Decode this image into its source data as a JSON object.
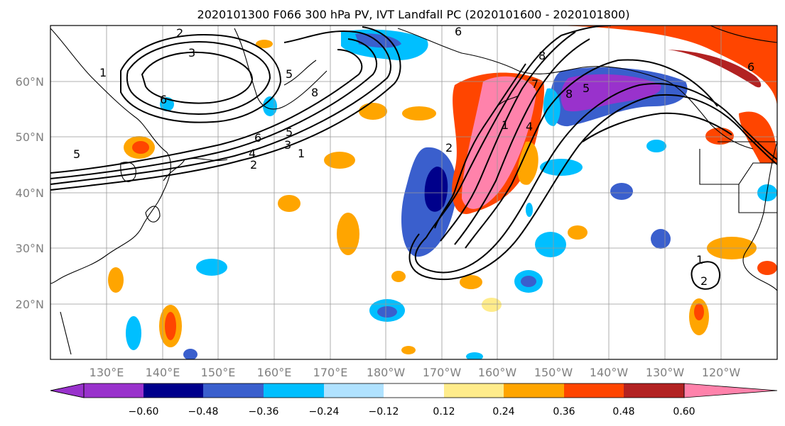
{
  "title": "2020101300 F066 300 hPa PV, IVT Landfall PC (2020101600 - 2020101800)",
  "map": {
    "lon_ticks": [
      "130°E",
      "140°E",
      "150°E",
      "160°E",
      "170°E",
      "180°W",
      "170°W",
      "160°W",
      "150°W",
      "140°W",
      "130°W",
      "120°W"
    ],
    "lat_ticks": [
      "60°N",
      "50°N",
      "40°N",
      "30°N",
      "20°N"
    ],
    "gridlines": true,
    "coastlines": true
  },
  "colorbar": {
    "ticks": [
      "−0.60",
      "−0.48",
      "−0.36",
      "−0.24",
      "−0.12",
      "0.12",
      "0.24",
      "0.36",
      "0.48",
      "0.60"
    ],
    "colors": [
      "#9932cc",
      "#00008b",
      "#3a5fcd",
      "#00bfff",
      "#b0e2ff",
      "#ffffff",
      "#ffec8b",
      "#ffa500",
      "#ff4500",
      "#b22222",
      "#ff82ab"
    ],
    "extend": "both"
  },
  "contour_labels": [
    "2",
    "3",
    "1",
    "5",
    "6",
    "8",
    "5",
    "6",
    "5",
    "4",
    "3",
    "2",
    "1",
    "6",
    "8",
    "2",
    "1",
    "4",
    "7",
    "8",
    "5",
    "6",
    "1",
    "2"
  ]
}
